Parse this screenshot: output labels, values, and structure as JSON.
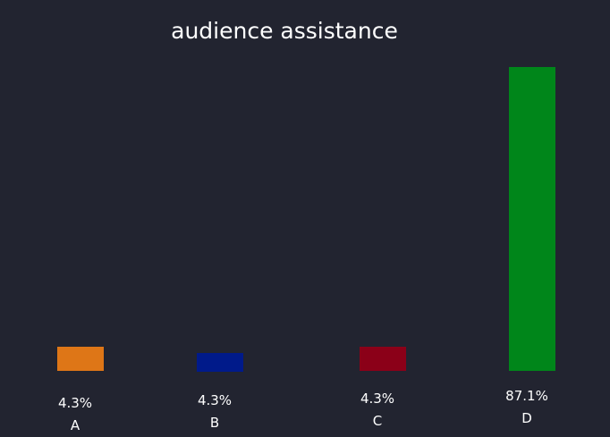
{
  "chart_data": {
    "type": "bar",
    "title": "audience assistance",
    "categories": [
      "A",
      "B",
      "C",
      "D"
    ],
    "values": [
      4.3,
      4.3,
      4.3,
      87.1
    ],
    "value_labels": [
      "4.3%",
      "4.3%",
      "4.3%",
      "87.1%"
    ],
    "colors": [
      "#de7617",
      "#001a8a",
      "#8b0018",
      "#00861a"
    ],
    "ylim": [
      0,
      87.1
    ],
    "grid": false,
    "legend": "none",
    "background": "#222430"
  }
}
